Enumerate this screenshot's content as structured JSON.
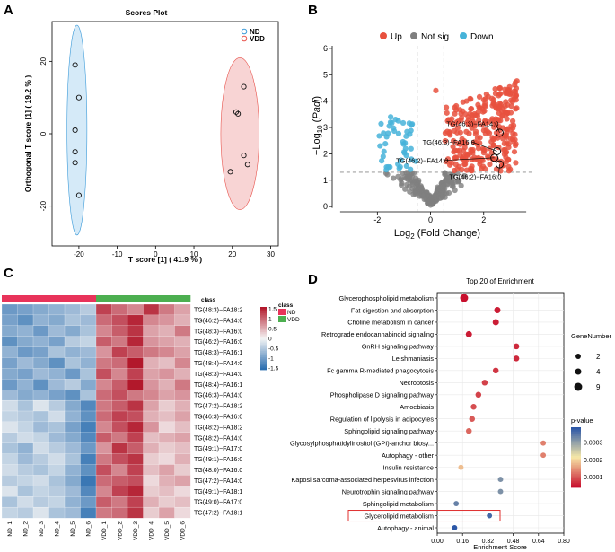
{
  "panels": {
    "A": {
      "letter": "A",
      "chart_data": {
        "type": "scatter",
        "title": "Scores Plot",
        "xlabel": "T score [1] ( 41.9 % )",
        "ylabel": "Orthogonal T score [1] ( 19.2 % )",
        "xlim": [
          -27,
          32
        ],
        "ylim": [
          -31,
          31
        ],
        "xticks": [
          -20,
          -10,
          0,
          10,
          20,
          30
        ],
        "yticks": [
          -20,
          0,
          20
        ],
        "legend": [
          "ND",
          "VDD"
        ],
        "colors": {
          "ND": "#3a9ad9",
          "VDD": "#e8554e",
          "ND_fill": "#c7e3f6",
          "VDD_fill": "#f6c6c6"
        },
        "series": [
          {
            "name": "ND",
            "points": [
              [
                -21,
                19
              ],
              [
                -20,
                10
              ],
              [
                -21,
                1
              ],
              [
                -21,
                -5
              ],
              [
                -21,
                -8
              ],
              [
                -20,
                -17
              ]
            ],
            "ellipse": {
              "cx": -20.5,
              "cy": 1,
              "rx": 2.6,
              "ry": 29
            }
          },
          {
            "name": "VDD",
            "points": [
              [
                23,
                13
              ],
              [
                21,
                6
              ],
              [
                21.5,
                5.5
              ],
              [
                23,
                -6
              ],
              [
                24,
                -8.5
              ],
              [
                19.5,
                -10.5
              ]
            ],
            "ellipse": {
              "cx": 22,
              "cy": 0,
              "rx": 5,
              "ry": 21
            }
          }
        ]
      }
    },
    "B": {
      "letter": "B",
      "chart_data": {
        "type": "scatter",
        "xlabel_pre": "Log",
        "xlabel_sub": "2",
        "xlabel_post": " (Fold Change)",
        "ylabel_pre": "−Log",
        "ylabel_sub": "10",
        "ylabel_mid": " (",
        "ylabel_it": "Padj",
        "ylabel_post": ")",
        "xlim": [
          -3.7,
          3.9
        ],
        "ylim": [
          -0.2,
          6.2
        ],
        "xticks": [
          -2,
          0,
          2
        ],
        "yticks": [
          0,
          1,
          2,
          3,
          4,
          5,
          6
        ],
        "threshold_x": [
          -0.5,
          0.5
        ],
        "threshold_y": 1.3,
        "legend": [
          "Up",
          "Not sig",
          "Down"
        ],
        "colors": {
          "Up": "#e8513e",
          "Not sig": "#7f7f7f",
          "Down": "#46b3d9"
        },
        "labels": [
          {
            "text": "TG(46:3)−FA14:0",
            "px": 2.6,
            "py": 2.8,
            "tx": 0.6,
            "ty": 3.05
          },
          {
            "text": "TG(46:3)−FA16:0",
            "px": 2.5,
            "py": 2.1,
            "tx": -0.3,
            "ty": 2.35
          },
          {
            "text": "TG(46:2)−FA14:0",
            "px": 2.4,
            "py": 1.85,
            "tx": -1.3,
            "ty": 1.65
          },
          {
            "text": "TG(46:2)−FA16:0",
            "px": 2.6,
            "py": 1.6,
            "tx": 0.7,
            "ty": 1.05
          }
        ]
      }
    },
    "C": {
      "letter": "C",
      "chart_data": {
        "type": "heatmap",
        "class_label": "class",
        "groups": [
          "ND",
          "VDD"
        ],
        "group_colors": {
          "ND": "#e8335a",
          "VDD": "#4caf50"
        },
        "columns": [
          "ND_1",
          "ND_2",
          "ND_3",
          "ND_4",
          "ND_5",
          "ND_6",
          "VDD_1",
          "VDD_2",
          "VDD_3",
          "VDD_4",
          "VDD_5",
          "VDD_6"
        ],
        "rows": [
          "TG(48:3)−FA18:2",
          "TG(46:2)−FA14:0",
          "TG(48:3)−FA16:0",
          "TG(46:2)−FA16:0",
          "TG(48:3)−FA16:1",
          "TG(48:4)−FA14:0",
          "TG(48:3)−FA14:0",
          "TG(48:4)−FA16:1",
          "TG(46:3)−FA14:0",
          "TG(47:2)−FA18:2",
          "TG(46:3)−FA16:0",
          "TG(48:2)−FA18:2",
          "TG(48:2)−FA14:0",
          "TG(49:1)−FA17:0",
          "TG(49:1)−FA16:0",
          "TG(48:0)−FA16:0",
          "TG(47:2)−FA14:0",
          "TG(49:1)−FA18:1",
          "TG(49:0)−FA17:0",
          "TG(47:2)−FA18:1"
        ],
        "scale_ticks": [
          1.5,
          1,
          0.5,
          0,
          -0.5,
          -1,
          -1.5
        ],
        "values": [
          [
            -1.1,
            -1.0,
            -0.9,
            -0.8,
            -0.7,
            -0.5,
            1.3,
            1.0,
            0.8,
            1.4,
            0.9,
            0.6
          ],
          [
            -1.0,
            -1.2,
            -0.8,
            -0.9,
            -0.6,
            -0.7,
            1.0,
            1.2,
            1.5,
            0.8,
            0.7,
            0.5
          ],
          [
            -0.9,
            -0.8,
            -1.1,
            -0.7,
            -0.9,
            -0.6,
            0.8,
            1.1,
            1.4,
            0.6,
            0.5,
            0.9
          ],
          [
            -1.2,
            -0.9,
            -0.8,
            -1.0,
            -0.5,
            -0.4,
            1.1,
            0.9,
            1.5,
            0.7,
            0.6,
            0.5
          ],
          [
            -0.8,
            -1.1,
            -1.0,
            -0.6,
            -0.8,
            -0.7,
            0.7,
            1.3,
            1.1,
            0.9,
            0.8,
            0.6
          ],
          [
            -1.0,
            -0.7,
            -0.9,
            -1.2,
            -0.6,
            -0.8,
            0.9,
            1.0,
            1.6,
            0.5,
            0.4,
            0.8
          ],
          [
            -0.9,
            -1.0,
            -0.7,
            -0.8,
            -1.1,
            -0.6,
            1.2,
            0.8,
            1.3,
            0.6,
            0.7,
            0.5
          ],
          [
            -1.1,
            -0.8,
            -1.2,
            -0.7,
            -0.5,
            -0.9,
            0.8,
            1.1,
            1.6,
            0.7,
            0.5,
            0.9
          ],
          [
            -0.7,
            -0.9,
            -0.8,
            -1.0,
            -1.2,
            -0.6,
            1.0,
            1.2,
            0.9,
            0.8,
            0.6,
            0.7
          ],
          [
            -0.3,
            -0.6,
            -0.2,
            -0.5,
            -0.9,
            -1.3,
            0.9,
            1.1,
            1.4,
            0.6,
            0.3,
            0.5
          ],
          [
            -0.4,
            -0.5,
            -0.6,
            -0.3,
            -0.8,
            -1.2,
            1.0,
            1.3,
            1.2,
            0.5,
            0.4,
            0.6
          ],
          [
            -0.2,
            -0.4,
            -0.7,
            -0.6,
            -1.0,
            -1.4,
            0.8,
            1.2,
            1.5,
            0.7,
            0.2,
            0.4
          ],
          [
            -0.5,
            -0.3,
            -0.4,
            -0.7,
            -0.9,
            -1.3,
            1.1,
            0.9,
            1.3,
            0.4,
            0.5,
            0.6
          ],
          [
            -0.6,
            -0.8,
            -0.3,
            -0.5,
            -0.7,
            -1.1,
            0.7,
            1.4,
            1.1,
            0.5,
            0.3,
            0.4
          ],
          [
            -0.4,
            -0.7,
            -0.5,
            -0.3,
            -0.6,
            -1.4,
            0.9,
            1.2,
            1.4,
            0.3,
            0.2,
            0.5
          ],
          [
            -0.3,
            -0.5,
            -0.6,
            -0.4,
            -0.8,
            -1.2,
            1.2,
            0.8,
            1.3,
            0.4,
            0.6,
            0.3
          ],
          [
            -0.5,
            -0.4,
            -0.3,
            -0.6,
            -0.9,
            -1.5,
            1.0,
            1.1,
            1.2,
            0.2,
            0.5,
            0.6
          ],
          [
            -0.2,
            -0.6,
            -0.4,
            -0.5,
            -0.7,
            -1.3,
            0.8,
            1.3,
            1.5,
            0.3,
            0.4,
            0.2
          ],
          [
            -0.6,
            -0.3,
            -0.5,
            -0.4,
            -0.8,
            -1.1,
            1.1,
            0.9,
            1.3,
            0.5,
            0.3,
            0.4
          ],
          [
            -0.4,
            -0.5,
            -0.2,
            -0.6,
            -0.7,
            -1.4,
            0.9,
            1.0,
            1.4,
            0.3,
            0.6,
            0.2
          ]
        ]
      }
    },
    "D": {
      "letter": "D",
      "chart_data": {
        "type": "scatter",
        "title": "Top 20 of  Enrichment",
        "xlabel": "Enrichment Score",
        "xlim": [
          0,
          0.8
        ],
        "xticks": [
          "0.00",
          "0.16",
          "0.32",
          "0.48",
          "0.64",
          "0.80"
        ],
        "size_legend_title": "GeneNumber",
        "size_legend": [
          2,
          4,
          9
        ],
        "color_legend_title": "p-value",
        "color_ticks": [
          "0.0003",
          "0.0002",
          "0.0001"
        ],
        "pmin": 4e-05,
        "pmax": 0.00039,
        "highlight": "Glycerolipid metabolism",
        "terms": [
          {
            "name": "Glycerophospholipid metabolism",
            "score": 0.17,
            "p": 4e-05,
            "genes": 9
          },
          {
            "name": "Fat digestion and absorption",
            "score": 0.38,
            "p": 5e-05,
            "genes": 4
          },
          {
            "name": "Choline metabolism in cancer",
            "score": 0.37,
            "p": 5e-05,
            "genes": 4
          },
          {
            "name": "Retrograde endocannabinoid signaling",
            "score": 0.2,
            "p": 5e-05,
            "genes": 4
          },
          {
            "name": "GnRH signaling pathway",
            "score": 0.5,
            "p": 6e-05,
            "genes": 3
          },
          {
            "name": "Leishmaniasis",
            "score": 0.5,
            "p": 6e-05,
            "genes": 3
          },
          {
            "name": "Fc gamma R-mediated phagocytosis",
            "score": 0.37,
            "p": 7e-05,
            "genes": 3
          },
          {
            "name": "Necroptosis",
            "score": 0.3,
            "p": 8e-05,
            "genes": 3
          },
          {
            "name": "Phospholipase D signaling pathway",
            "score": 0.26,
            "p": 8e-05,
            "genes": 3
          },
          {
            "name": "Amoebiasis",
            "score": 0.23,
            "p": 9e-05,
            "genes": 3
          },
          {
            "name": "Regulation of lipolysis in adipocytes",
            "score": 0.22,
            "p": 0.0001,
            "genes": 3
          },
          {
            "name": "Sphingolipid signaling pathway",
            "score": 0.2,
            "p": 0.00011,
            "genes": 3
          },
          {
            "name": "Glycosylphosphatidylinositol (GPI)-anchor biosy...",
            "score": 0.67,
            "p": 0.00013,
            "genes": 2
          },
          {
            "name": "Autophagy - other",
            "score": 0.67,
            "p": 0.00013,
            "genes": 2
          },
          {
            "name": "Insulin resistance",
            "score": 0.15,
            "p": 0.00018,
            "genes": 2
          },
          {
            "name": "Kaposi sarcoma-associated herpesvirus infection",
            "score": 0.4,
            "p": 0.00032,
            "genes": 2
          },
          {
            "name": "Neurotrophin signaling pathway",
            "score": 0.4,
            "p": 0.00032,
            "genes": 2
          },
          {
            "name": "Sphingolipid metabolism",
            "score": 0.12,
            "p": 0.00034,
            "genes": 2
          },
          {
            "name": "Glycerolipid metabolism",
            "score": 0.33,
            "p": 0.00037,
            "genes": 2
          },
          {
            "name": "Autophagy - animal",
            "score": 0.11,
            "p": 0.00039,
            "genes": 2
          }
        ]
      }
    }
  }
}
